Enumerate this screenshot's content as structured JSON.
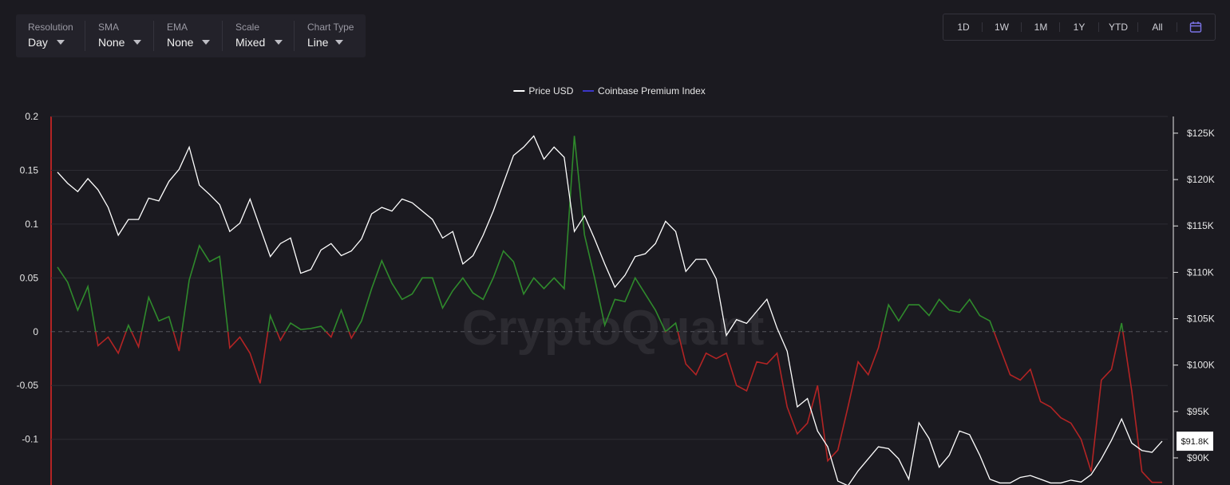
{
  "toolbar": [
    {
      "label": "Resolution",
      "value": "Day"
    },
    {
      "label": "SMA",
      "value": "None"
    },
    {
      "label": "EMA",
      "value": "None"
    },
    {
      "label": "Scale",
      "value": "Mixed"
    },
    {
      "label": "Chart Type",
      "value": "Line"
    }
  ],
  "ranges": [
    "1D",
    "1W",
    "1M",
    "1Y",
    "YTD",
    "All"
  ],
  "watermark": "CryptoQuant",
  "chart_data": {
    "type": "line",
    "legend_position": "top",
    "grid": true,
    "ylim": [
      -0.141,
      0.2
    ],
    "yticks": [
      0.2,
      0.15,
      0.1,
      0.05,
      0,
      -0.05,
      -0.1
    ],
    "y2lim": [
      87250,
      126800
    ],
    "y2ticks": [
      {
        "value": 125000,
        "label": "$125K"
      },
      {
        "value": 120000,
        "label": "$120K"
      },
      {
        "value": 115000,
        "label": "$115K"
      },
      {
        "value": 110000,
        "label": "$110K"
      },
      {
        "value": 105000,
        "label": "$105K"
      },
      {
        "value": 100000,
        "label": "$100K"
      },
      {
        "value": 95000,
        "label": "$95K"
      },
      {
        "value": 90000,
        "label": "$90K"
      }
    ],
    "series": [
      {
        "name": "Price USD",
        "color": "#ffffff",
        "axis": "y2",
        "last_label": "$91.8K",
        "values": [
          120800,
          119600,
          118700,
          120100,
          118900,
          117000,
          114000,
          115700,
          115700,
          118000,
          117700,
          119800,
          121100,
          123500,
          119400,
          118400,
          117300,
          114400,
          115300,
          117900,
          114800,
          111700,
          113100,
          113700,
          109900,
          110300,
          112400,
          113100,
          111800,
          112300,
          113600,
          116300,
          117000,
          116600,
          117900,
          117500,
          116600,
          115700,
          113700,
          114400,
          110900,
          111800,
          114000,
          116600,
          119600,
          122600,
          123500,
          124700,
          122200,
          123500,
          122400,
          114400,
          116100,
          113600,
          110900,
          108400,
          109700,
          111700,
          112000,
          113100,
          115500,
          114400,
          110100,
          111400,
          111400,
          109300,
          103200,
          104900,
          104500,
          105800,
          107100,
          104000,
          101500,
          95500,
          96400,
          92900,
          91200,
          87500,
          87000,
          88600,
          89900,
          91200,
          91000,
          89900,
          87700,
          93800,
          92100,
          89000,
          90300,
          92900,
          92500,
          90300,
          87700,
          87300,
          87300,
          87900,
          88100,
          87700,
          87300,
          87300,
          87600,
          87400,
          88200,
          89900,
          91900,
          94200,
          91600,
          90800,
          90600,
          91800
        ]
      },
      {
        "name": "Coinbase Premium Index",
        "color": "#3b37c8",
        "positive_color": "#2f8a2c",
        "negative_color": "#b32424",
        "values": [
          0.06,
          0.046,
          0.02,
          0.042,
          -0.013,
          -0.005,
          -0.02,
          0.006,
          -0.014,
          0.032,
          0.01,
          0.014,
          -0.018,
          0.048,
          0.08,
          0.065,
          0.07,
          -0.015,
          -0.005,
          -0.02,
          -0.048,
          0.015,
          -0.008,
          0.008,
          0.002,
          0.003,
          0.005,
          -0.005,
          0.02,
          -0.006,
          0.01,
          0.04,
          0.066,
          0.045,
          0.03,
          0.035,
          0.05,
          0.05,
          0.022,
          0.038,
          0.05,
          0.036,
          0.03,
          0.05,
          0.075,
          0.065,
          0.035,
          0.05,
          0.04,
          0.05,
          0.04,
          0.182,
          0.09,
          0.05,
          0.006,
          0.03,
          0.028,
          0.05,
          0.035,
          0.02,
          0.0,
          0.008,
          -0.03,
          -0.04,
          -0.02,
          -0.025,
          -0.02,
          -0.05,
          -0.055,
          -0.028,
          -0.03,
          -0.02,
          -0.07,
          -0.095,
          -0.085,
          -0.05,
          -0.12,
          -0.11,
          -0.07,
          -0.028,
          -0.04,
          -0.015,
          0.025,
          0.01,
          0.025,
          0.025,
          0.015,
          0.03,
          0.02,
          0.018,
          0.03,
          0.015,
          0.01,
          -0.015,
          -0.04,
          -0.045,
          -0.035,
          -0.065,
          -0.07,
          -0.08,
          -0.085,
          -0.1,
          -0.13,
          -0.045,
          -0.035,
          0.008,
          -0.055,
          -0.13,
          -0.14,
          -0.14
        ]
      }
    ]
  }
}
